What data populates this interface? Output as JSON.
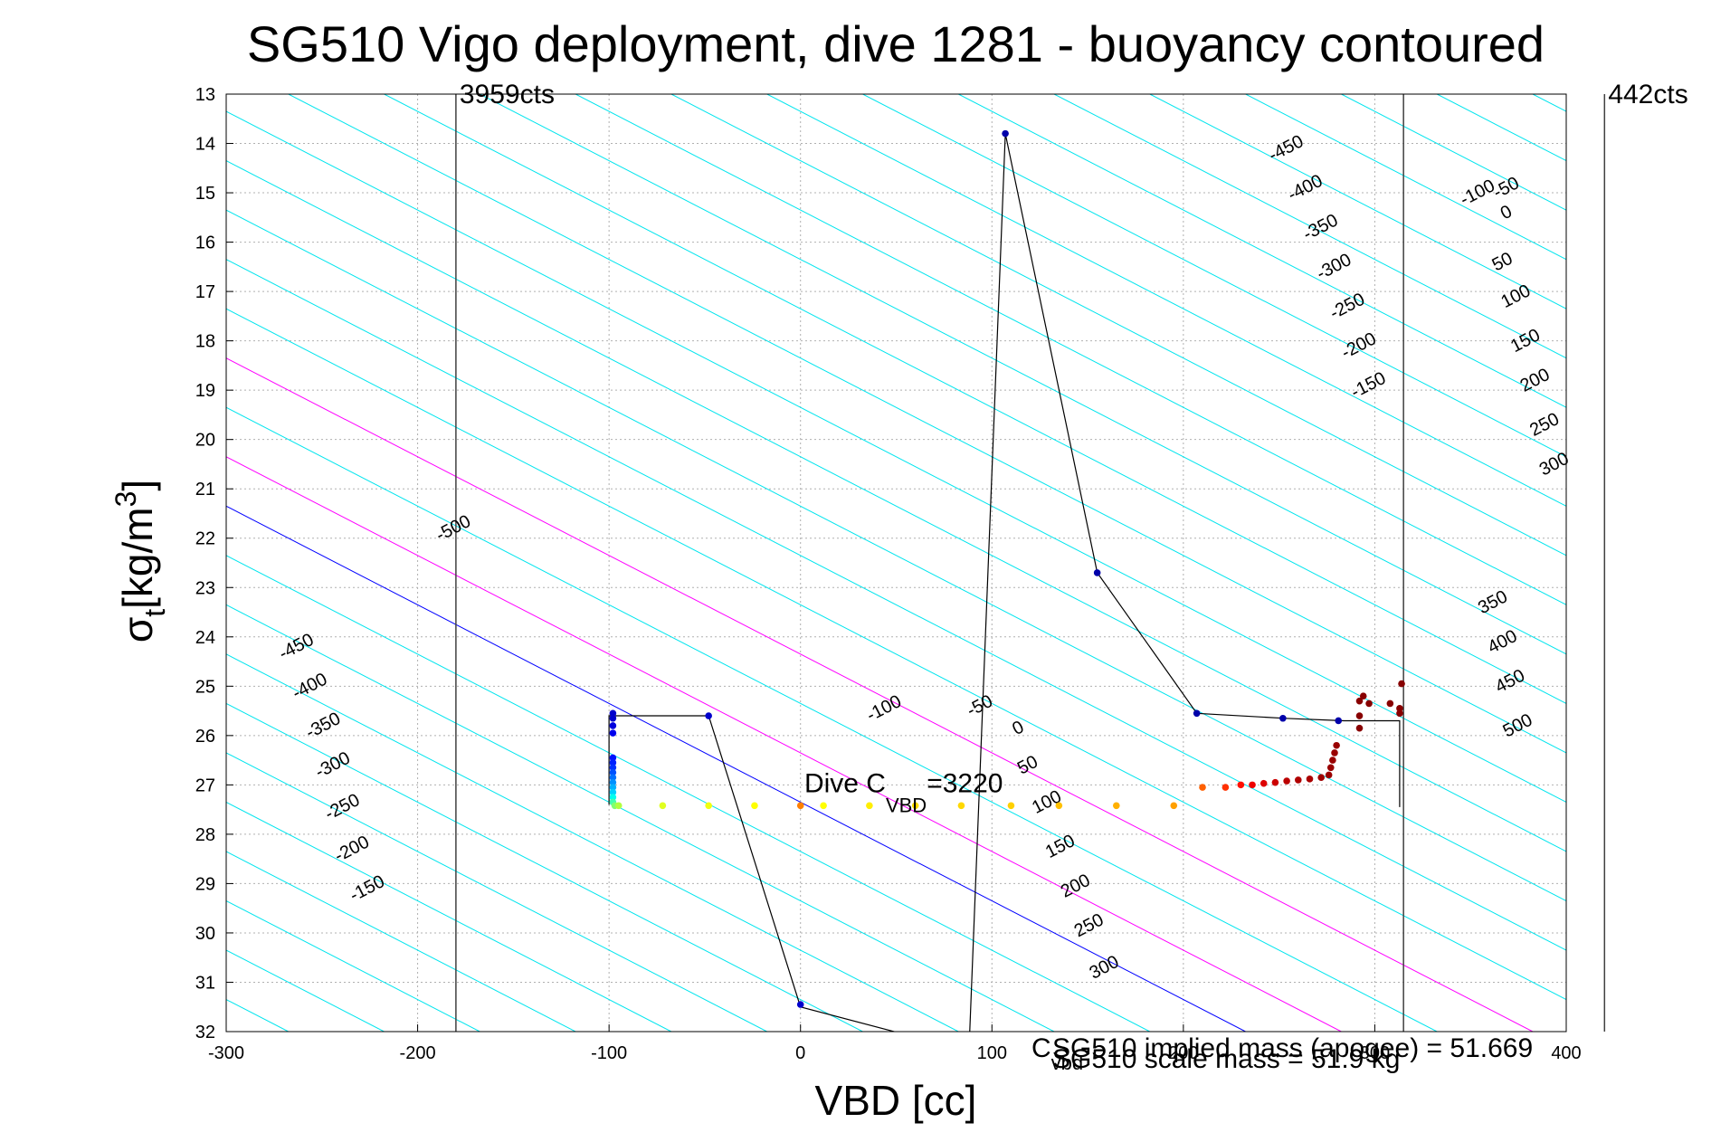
{
  "chart_data": {
    "type": "scatter",
    "title": "SG510 Vigo deployment, dive 1281 - buoyancy contoured",
    "xlabel": "VBD [cc]",
    "ylabel_symbol": "σ",
    "ylabel_sub": "t",
    "ylabel_units": "[kg/m",
    "ylabel_sup": "3",
    "ylabel_close": "]",
    "xlim": [
      -300,
      400
    ],
    "ylim": [
      13,
      32
    ],
    "y_reversed": true,
    "grid": true,
    "x_ticks": [
      -300,
      -200,
      -100,
      0,
      100,
      200,
      300,
      400
    ],
    "x_tick_labels": [
      "-300",
      "-200",
      "-100",
      "0",
      "100",
      "200",
      "300",
      "400"
    ],
    "y_ticks": [
      13,
      14,
      15,
      16,
      17,
      18,
      19,
      20,
      21,
      22,
      23,
      24,
      25,
      26,
      27,
      28,
      29,
      30,
      31,
      32
    ],
    "y_tick_labels": [
      "13",
      "14",
      "15",
      "16",
      "17",
      "18",
      "19",
      "20",
      "21",
      "22",
      "23",
      "24",
      "25",
      "26",
      "27",
      "28",
      "29",
      "30",
      "31",
      "32"
    ],
    "limit_lines": [
      {
        "x": -180,
        "label": "3959cts"
      },
      {
        "x": 420,
        "label": "442cts"
      }
    ],
    "apogee_line_x": 315,
    "buoyancy_contours": {
      "slope_cc_per_kgm3": 50,
      "spacing_cc": 50,
      "levels": [
        -500,
        -450,
        -400,
        -350,
        -300,
        -250,
        -200,
        -150,
        -100,
        -50,
        0,
        50,
        100,
        150,
        200,
        250,
        300,
        350,
        400,
        450,
        500
      ],
      "zero_vbd_at_sigma": 27.35,
      "neutral_level": 0,
      "highlight_levels": [
        50,
        150
      ],
      "colors": {
        "default": "#00e5ee",
        "neutral": "#0000ff",
        "highlight": "#ff00ff"
      }
    },
    "contour_labels": [
      {
        "text": "-500",
        "x": -180,
        "y": 21.9
      },
      {
        "text": "-450",
        "x": 255,
        "y": 14.2
      },
      {
        "text": "-400",
        "x": 265,
        "y": 15.0
      },
      {
        "text": "-350",
        "x": 273,
        "y": 15.8
      },
      {
        "text": "-300",
        "x": 280,
        "y": 16.6
      },
      {
        "text": "-250",
        "x": 287,
        "y": 17.4
      },
      {
        "text": "-200",
        "x": 293,
        "y": 18.2
      },
      {
        "text": "-150",
        "x": 298,
        "y": 19.0
      },
      {
        "text": "-450",
        "x": -262,
        "y": 24.3
      },
      {
        "text": "-400",
        "x": -255,
        "y": 25.1
      },
      {
        "text": "-350",
        "x": -248,
        "y": 25.9
      },
      {
        "text": "-300",
        "x": -243,
        "y": 26.7
      },
      {
        "text": "-250",
        "x": -238,
        "y": 27.55
      },
      {
        "text": "-200",
        "x": -233,
        "y": 28.4
      },
      {
        "text": "-150",
        "x": -225,
        "y": 29.2
      },
      {
        "text": "-100",
        "x": 45,
        "y": 25.55
      },
      {
        "text": "-50",
        "x": 95,
        "y": 25.5
      },
      {
        "text": "0",
        "x": 115,
        "y": 25.95
      },
      {
        "text": "50",
        "x": 120,
        "y": 26.7
      },
      {
        "text": "100",
        "x": 130,
        "y": 27.45
      },
      {
        "text": "150",
        "x": 137,
        "y": 28.35
      },
      {
        "text": "200",
        "x": 145,
        "y": 29.15
      },
      {
        "text": "250",
        "x": 152,
        "y": 29.95
      },
      {
        "text": "300",
        "x": 160,
        "y": 30.8
      },
      {
        "text": "-100",
        "x": 355,
        "y": 15.1
      },
      {
        "text": "-50",
        "x": 370,
        "y": 15.0
      },
      {
        "text": "0",
        "x": 370,
        "y": 15.5
      },
      {
        "text": "50",
        "x": 368,
        "y": 16.5
      },
      {
        "text": "100",
        "x": 375,
        "y": 17.2
      },
      {
        "text": "150",
        "x": 380,
        "y": 18.1
      },
      {
        "text": "200",
        "x": 385,
        "y": 18.9
      },
      {
        "text": "250",
        "x": 390,
        "y": 19.8
      },
      {
        "text": "300",
        "x": 395,
        "y": 20.6
      },
      {
        "text": "350",
        "x": 363,
        "y": 23.4
      },
      {
        "text": "400",
        "x": 368,
        "y": 24.2
      },
      {
        "text": "450",
        "x": 372,
        "y": 25.0
      },
      {
        "text": "500",
        "x": 376,
        "y": 25.9
      }
    ],
    "series": [
      {
        "path": [
          [
            -100,
            27.4
          ],
          [
            -100,
            25.6
          ],
          [
            -48,
            25.6
          ],
          [
            0,
            31.5
          ],
          [
            88,
            32.4
          ],
          [
            107,
            13.8
          ],
          [
            155,
            22.7
          ],
          [
            207,
            25.55
          ],
          [
            253,
            25.65
          ],
          [
            284,
            25.7
          ],
          [
            313,
            25.7
          ],
          [
            313,
            27.45
          ]
        ],
        "line_color": "#000000"
      },
      {
        "points": [
          {
            "x": -98,
            "y": 25.55,
            "c": "#0000cc"
          },
          {
            "x": -98,
            "y": 25.65,
            "c": "#0000cc"
          },
          {
            "x": -98,
            "y": 25.8,
            "c": "#0000dd"
          },
          {
            "x": -98,
            "y": 25.95,
            "c": "#0000ee"
          },
          {
            "x": -98,
            "y": 26.45,
            "c": "#0010ff"
          },
          {
            "x": -98,
            "y": 26.55,
            "c": "#0020ff"
          },
          {
            "x": -98,
            "y": 26.65,
            "c": "#0030ff"
          },
          {
            "x": -98,
            "y": 26.75,
            "c": "#0050ff"
          },
          {
            "x": -98,
            "y": 26.85,
            "c": "#0070ff"
          },
          {
            "x": -98,
            "y": 26.95,
            "c": "#0090ff"
          },
          {
            "x": -98,
            "y": 27.05,
            "c": "#00b0ff"
          },
          {
            "x": -98,
            "y": 27.15,
            "c": "#00d0ff"
          },
          {
            "x": -98,
            "y": 27.25,
            "c": "#00ffee"
          },
          {
            "x": -98,
            "y": 27.35,
            "c": "#40ffb0"
          },
          {
            "x": -97,
            "y": 27.42,
            "c": "#80ff70"
          },
          {
            "x": -95,
            "y": 27.42,
            "c": "#b0ff40"
          },
          {
            "x": -48,
            "y": 25.6,
            "c": "#0000cc"
          },
          {
            "x": 0,
            "y": 31.45,
            "c": "#0000cc"
          },
          {
            "x": 107,
            "y": 13.8,
            "c": "#0000aa"
          },
          {
            "x": 155,
            "y": 22.7,
            "c": "#0000aa"
          },
          {
            "x": 207,
            "y": 25.55,
            "c": "#0000aa"
          },
          {
            "x": 252,
            "y": 25.65,
            "c": "#0000aa"
          },
          {
            "x": 281,
            "y": 25.7,
            "c": "#0000aa"
          },
          {
            "x": -72,
            "y": 27.42,
            "c": "#e0ff20"
          },
          {
            "x": -48,
            "y": 27.42,
            "c": "#f0ff10"
          },
          {
            "x": -24,
            "y": 27.42,
            "c": "#ffff00"
          },
          {
            "x": 0,
            "y": 27.42,
            "c": "#ff8000"
          },
          {
            "x": 12,
            "y": 27.42,
            "c": "#ffff00"
          },
          {
            "x": 36,
            "y": 27.42,
            "c": "#ffee00"
          },
          {
            "x": 60,
            "y": 27.42,
            "c": "#ffe000"
          },
          {
            "x": 84,
            "y": 27.42,
            "c": "#ffd800"
          },
          {
            "x": 110,
            "y": 27.42,
            "c": "#ffd000"
          },
          {
            "x": 135,
            "y": 27.42,
            "c": "#ffc000"
          },
          {
            "x": 165,
            "y": 27.42,
            "c": "#ffb000"
          },
          {
            "x": 195,
            "y": 27.42,
            "c": "#ffa000"
          },
          {
            "x": 210,
            "y": 27.05,
            "c": "#ff6000"
          },
          {
            "x": 222,
            "y": 27.05,
            "c": "#ff3000"
          },
          {
            "x": 230,
            "y": 27.0,
            "c": "#ff1000"
          },
          {
            "x": 236,
            "y": 27.0,
            "c": "#ee0000"
          },
          {
            "x": 242,
            "y": 26.97,
            "c": "#dd0000"
          },
          {
            "x": 248,
            "y": 26.95,
            "c": "#cc0000"
          },
          {
            "x": 254,
            "y": 26.92,
            "c": "#bb0000"
          },
          {
            "x": 260,
            "y": 26.9,
            "c": "#b00000"
          },
          {
            "x": 266,
            "y": 26.88,
            "c": "#aa0000"
          },
          {
            "x": 272,
            "y": 26.85,
            "c": "#a00000"
          },
          {
            "x": 276,
            "y": 26.8,
            "c": "#990000"
          },
          {
            "x": 277,
            "y": 26.65,
            "c": "#990000"
          },
          {
            "x": 278,
            "y": 26.5,
            "c": "#990000"
          },
          {
            "x": 279,
            "y": 26.35,
            "c": "#990000"
          },
          {
            "x": 280,
            "y": 26.2,
            "c": "#990000"
          },
          {
            "x": 292,
            "y": 25.85,
            "c": "#880000"
          },
          {
            "x": 292,
            "y": 25.6,
            "c": "#880000"
          },
          {
            "x": 292,
            "y": 25.3,
            "c": "#880000"
          },
          {
            "x": 294,
            "y": 25.2,
            "c": "#880000"
          },
          {
            "x": 297,
            "y": 25.35,
            "c": "#880000"
          },
          {
            "x": 308,
            "y": 25.35,
            "c": "#880000"
          },
          {
            "x": 313,
            "y": 25.45,
            "c": "#880000"
          },
          {
            "x": 313,
            "y": 25.55,
            "c": "#880000"
          },
          {
            "x": 314,
            "y": 24.95,
            "c": "#880000"
          }
        ]
      }
    ],
    "annotations": {
      "dive_label": "Dive C",
      "dive_sub": "VBD",
      "dive_value": "=3220",
      "dive_pos": {
        "x": 2,
        "y": 27.15
      },
      "mass_line1": "SG510 implied mass (apogee) = 51.669",
      "mass_line2": "SG510 scale mass = 51.9 kg",
      "cvbd_symbol": "C",
      "cvbd_sub": "vbd"
    }
  }
}
